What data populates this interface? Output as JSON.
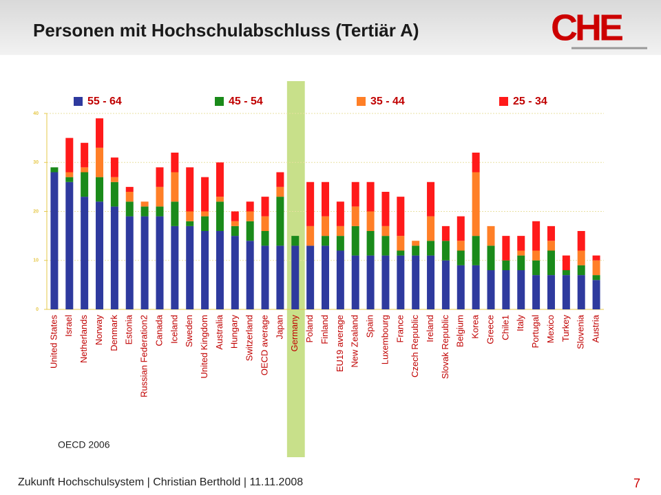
{
  "header": {
    "title": "Personen  mit Hochschulabschluss (Tertiär A)",
    "logo": "CHE"
  },
  "chart_data": {
    "type": "stacked_bar",
    "categories": [
      "United States",
      "Israel",
      "Netherlands",
      "Norway",
      "Denmark",
      "Estonia",
      "Russian Federation2",
      "Canada",
      "Iceland",
      "Sweden",
      "United Kingdom",
      "Australia",
      "Hungary",
      "Switzerland",
      "OECD average",
      "Japan",
      "Germany",
      "Poland",
      "Finland",
      "EU19  average",
      "New Zealand",
      "Spain",
      "Luxembourg",
      "France",
      "Czech Republic",
      "Ireland",
      "Slovak Republic",
      "Belgium",
      "Korea",
      "Greece",
      "Chile1",
      "Italy",
      "Portugal",
      "Mexico",
      "Turkey",
      "Slovenia",
      "Austria"
    ],
    "series": [
      {
        "name": "55 - 64",
        "color": "#2e3a9e",
        "values": [
          28,
          26,
          23,
          22,
          21,
          19,
          19,
          19,
          17,
          17,
          16,
          16,
          15,
          14,
          13,
          13,
          13,
          13,
          13,
          12,
          11,
          11,
          11,
          11,
          11,
          11,
          10,
          9,
          9,
          8,
          8,
          8,
          7,
          7,
          7,
          7,
          6
        ]
      },
      {
        "name": "45 - 54",
        "color": "#1a8a1a",
        "values": [
          1,
          1,
          5,
          5,
          5,
          3,
          2,
          2,
          5,
          1,
          3,
          6,
          2,
          4,
          3,
          10,
          2,
          0,
          2,
          3,
          6,
          5,
          4,
          1,
          2,
          3,
          4,
          3,
          6,
          5,
          2,
          3,
          3,
          5,
          1,
          2,
          1
        ]
      },
      {
        "name": "35 - 44",
        "color": "#ff7f27",
        "values": [
          0,
          1,
          1,
          6,
          1,
          2,
          1,
          4,
          6,
          2,
          1,
          1,
          1,
          2,
          3,
          2,
          0,
          4,
          4,
          2,
          4,
          4,
          2,
          3,
          1,
          5,
          0,
          2,
          13,
          4,
          0,
          1,
          2,
          2,
          0,
          3,
          3
        ]
      },
      {
        "name": "25 - 34",
        "color": "#ff1a1a",
        "values": [
          0,
          7,
          5,
          6,
          4,
          1,
          0,
          4,
          4,
          9,
          7,
          7,
          2,
          2,
          4,
          3,
          0,
          9,
          7,
          5,
          5,
          6,
          7,
          8,
          0,
          7,
          3,
          5,
          4,
          0,
          5,
          3,
          6,
          3,
          3,
          4,
          1
        ]
      }
    ],
    "ylim": [
      0,
      40
    ],
    "yticks": [
      0,
      10,
      20,
      30,
      40
    ],
    "grid": true,
    "highlight": "Germany",
    "highlight_color": "#c8e08a",
    "source": "OECD 2006"
  },
  "footer": {
    "text": "Zukunft Hochschulsystem | Christian Berthold | 11.11.2008",
    "page": "7"
  }
}
